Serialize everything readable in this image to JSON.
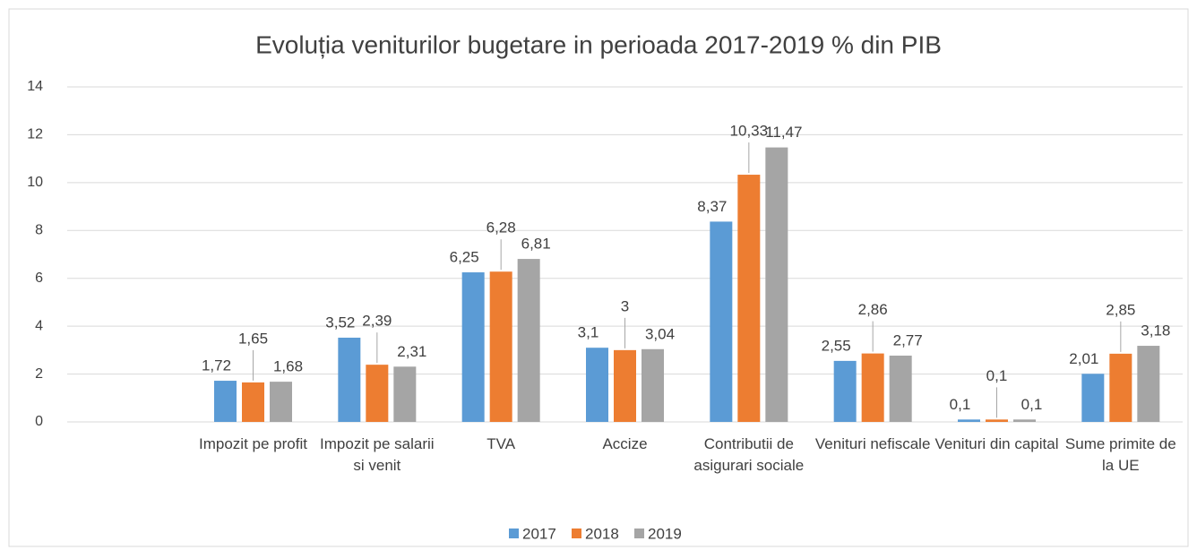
{
  "chart_data": {
    "type": "bar",
    "title": "Evoluția  veniturilor bugetare in perioada 2017-2019  % din PIB",
    "categories": [
      null,
      "Impozit pe profit",
      "Impozit pe salarii si venit",
      "TVA",
      "Accize",
      "Contributii de asigurari sociale",
      "Venituri nefiscale",
      "Venituri din capital",
      "Sume primite de la UE"
    ],
    "series": [
      {
        "name": "2017",
        "color": "#5b9bd5",
        "values": [
          null,
          1.72,
          3.52,
          6.25,
          3.1,
          8.37,
          2.55,
          0.1,
          2.01
        ],
        "value_labels": [
          null,
          "1,72",
          "3,52",
          "6,25",
          "3,1",
          "8,37",
          "2,55",
          "0,1",
          "2,01"
        ]
      },
      {
        "name": "2018",
        "color": "#ed7d31",
        "values": [
          null,
          1.65,
          2.39,
          6.28,
          3,
          10.33,
          2.86,
          0.1,
          2.85
        ],
        "value_labels": [
          null,
          "1,65",
          "2,39",
          "6,28",
          "3",
          "10,33",
          "2,86",
          "0,1",
          "2,85"
        ]
      },
      {
        "name": "2019",
        "color": "#a5a5a5",
        "values": [
          null,
          1.68,
          2.31,
          6.81,
          3.04,
          11.47,
          2.77,
          0.1,
          3.18
        ],
        "value_labels": [
          null,
          "1,68",
          "2,31",
          "6,81",
          "3,04",
          "11,47",
          "2,77",
          "0,1",
          "3,18"
        ]
      }
    ],
    "ylim": [
      0,
      14
    ],
    "yticks": [
      0,
      2,
      4,
      6,
      8,
      10,
      12,
      14
    ],
    "grid": true,
    "legend": "bottom"
  }
}
